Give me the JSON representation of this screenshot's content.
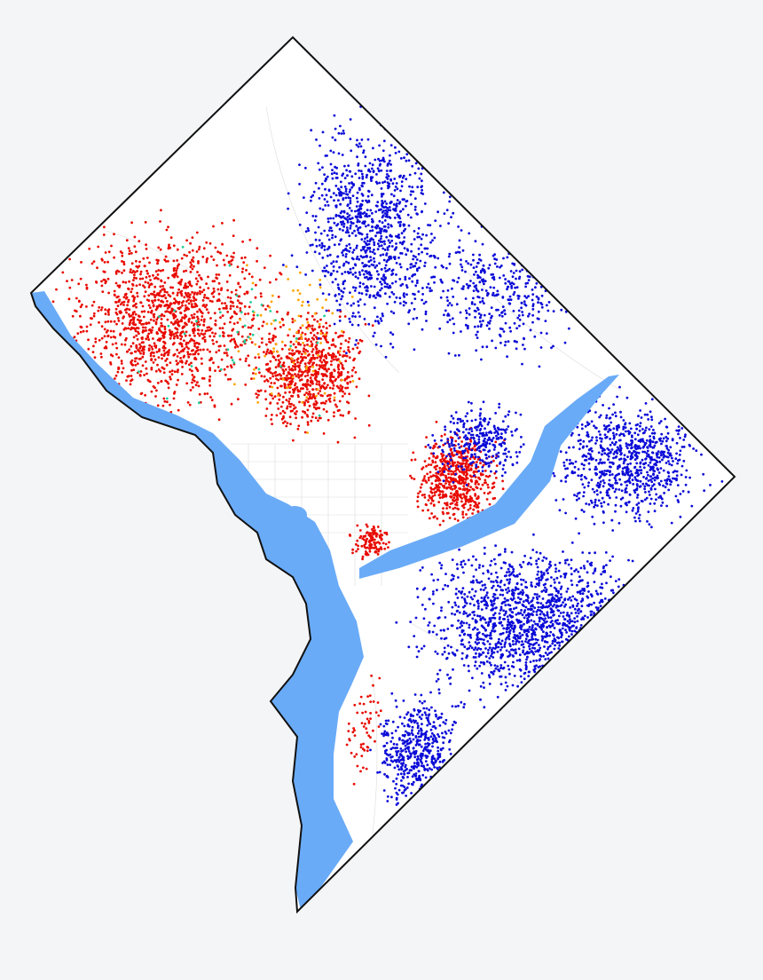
{
  "map": {
    "land": "#ffffff",
    "water": "#6aabf7",
    "dots": [
      "#e80a00",
      "#0a0ad8",
      "#ffa500",
      "#22cc99"
    ]
  }
}
